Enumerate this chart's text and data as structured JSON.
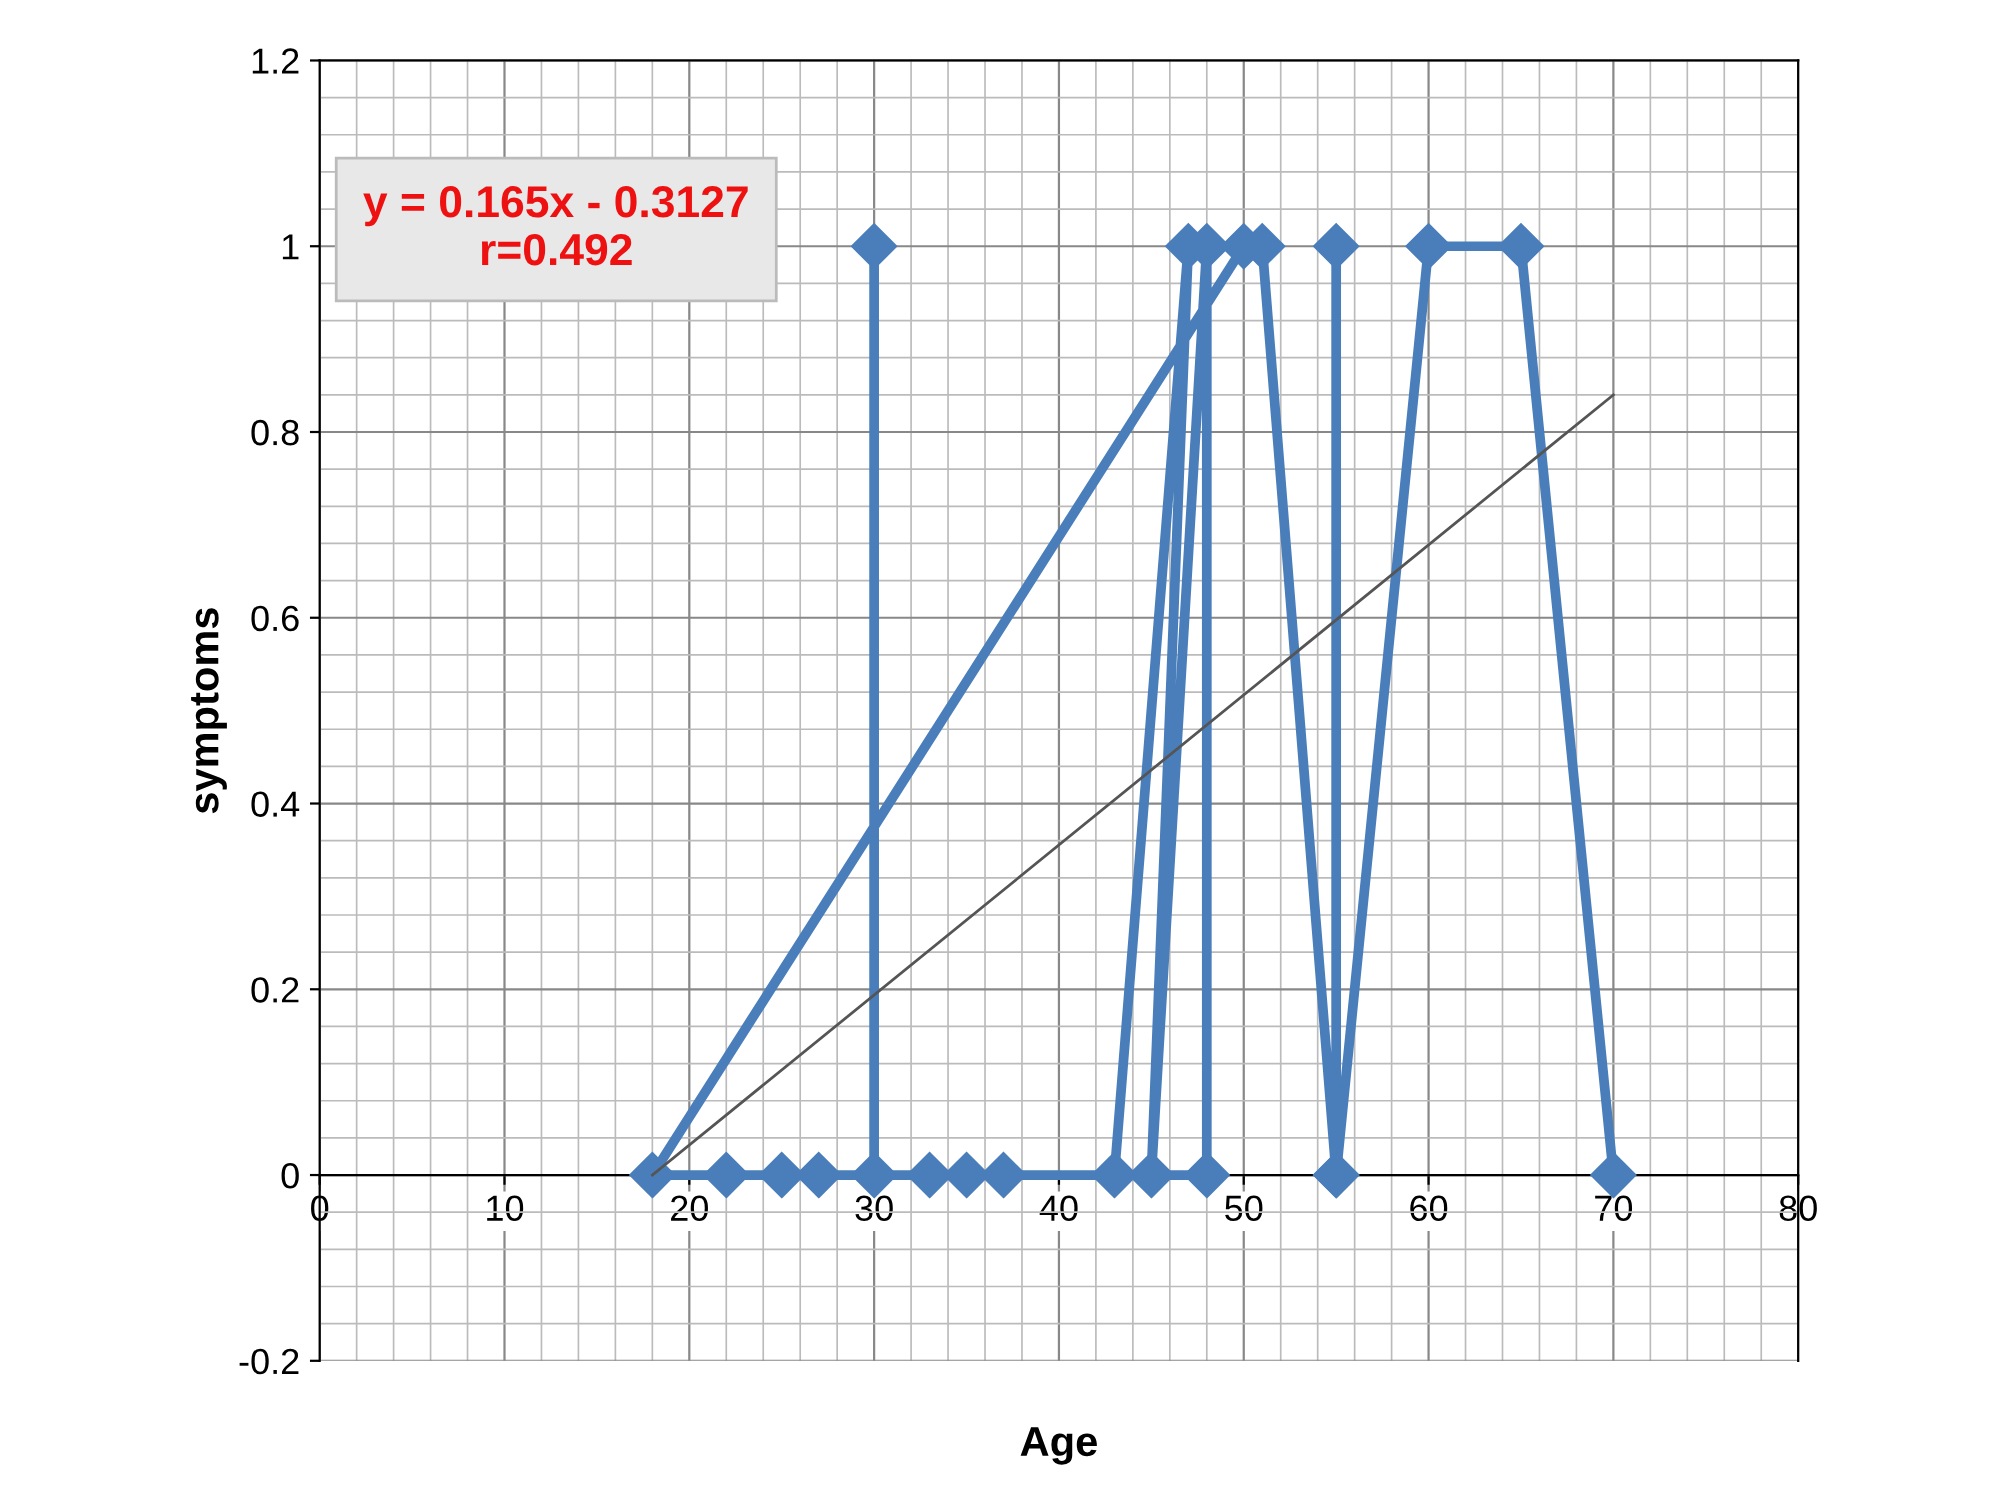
{
  "chart_data": {
    "type": "line",
    "xlabel": "Age",
    "ylabel": "symptoms",
    "series": [
      {
        "color": "#4a7ebb",
        "marker": "diamond",
        "x": [
          30,
          30,
          33,
          35,
          37,
          43,
          47,
          45,
          48,
          48,
          27,
          25,
          22,
          18,
          50,
          51,
          55,
          55,
          55,
          60,
          65,
          70
        ],
        "values": [
          1,
          0,
          0,
          0,
          0,
          0,
          1,
          0,
          1,
          0,
          0,
          0,
          0,
          0,
          1,
          1,
          0,
          1,
          0,
          1,
          1,
          0
        ]
      },
      {
        "color": "#555555",
        "marker": "none",
        "x": [
          18,
          70
        ],
        "values": [
          0,
          0.84
        ]
      }
    ],
    "xlim": [
      0,
      80
    ],
    "xticks": [
      0,
      10,
      20,
      30,
      40,
      50,
      60,
      70,
      80
    ],
    "ylim": [
      -0.2,
      1.2
    ],
    "yticks": [
      -0.2,
      0,
      0.2,
      0.4,
      0.6,
      0.8,
      1,
      1.2
    ],
    "grid": true,
    "legend": false,
    "annotations": [
      "y = 0.165x - 0.3127\nr=0.492"
    ]
  }
}
